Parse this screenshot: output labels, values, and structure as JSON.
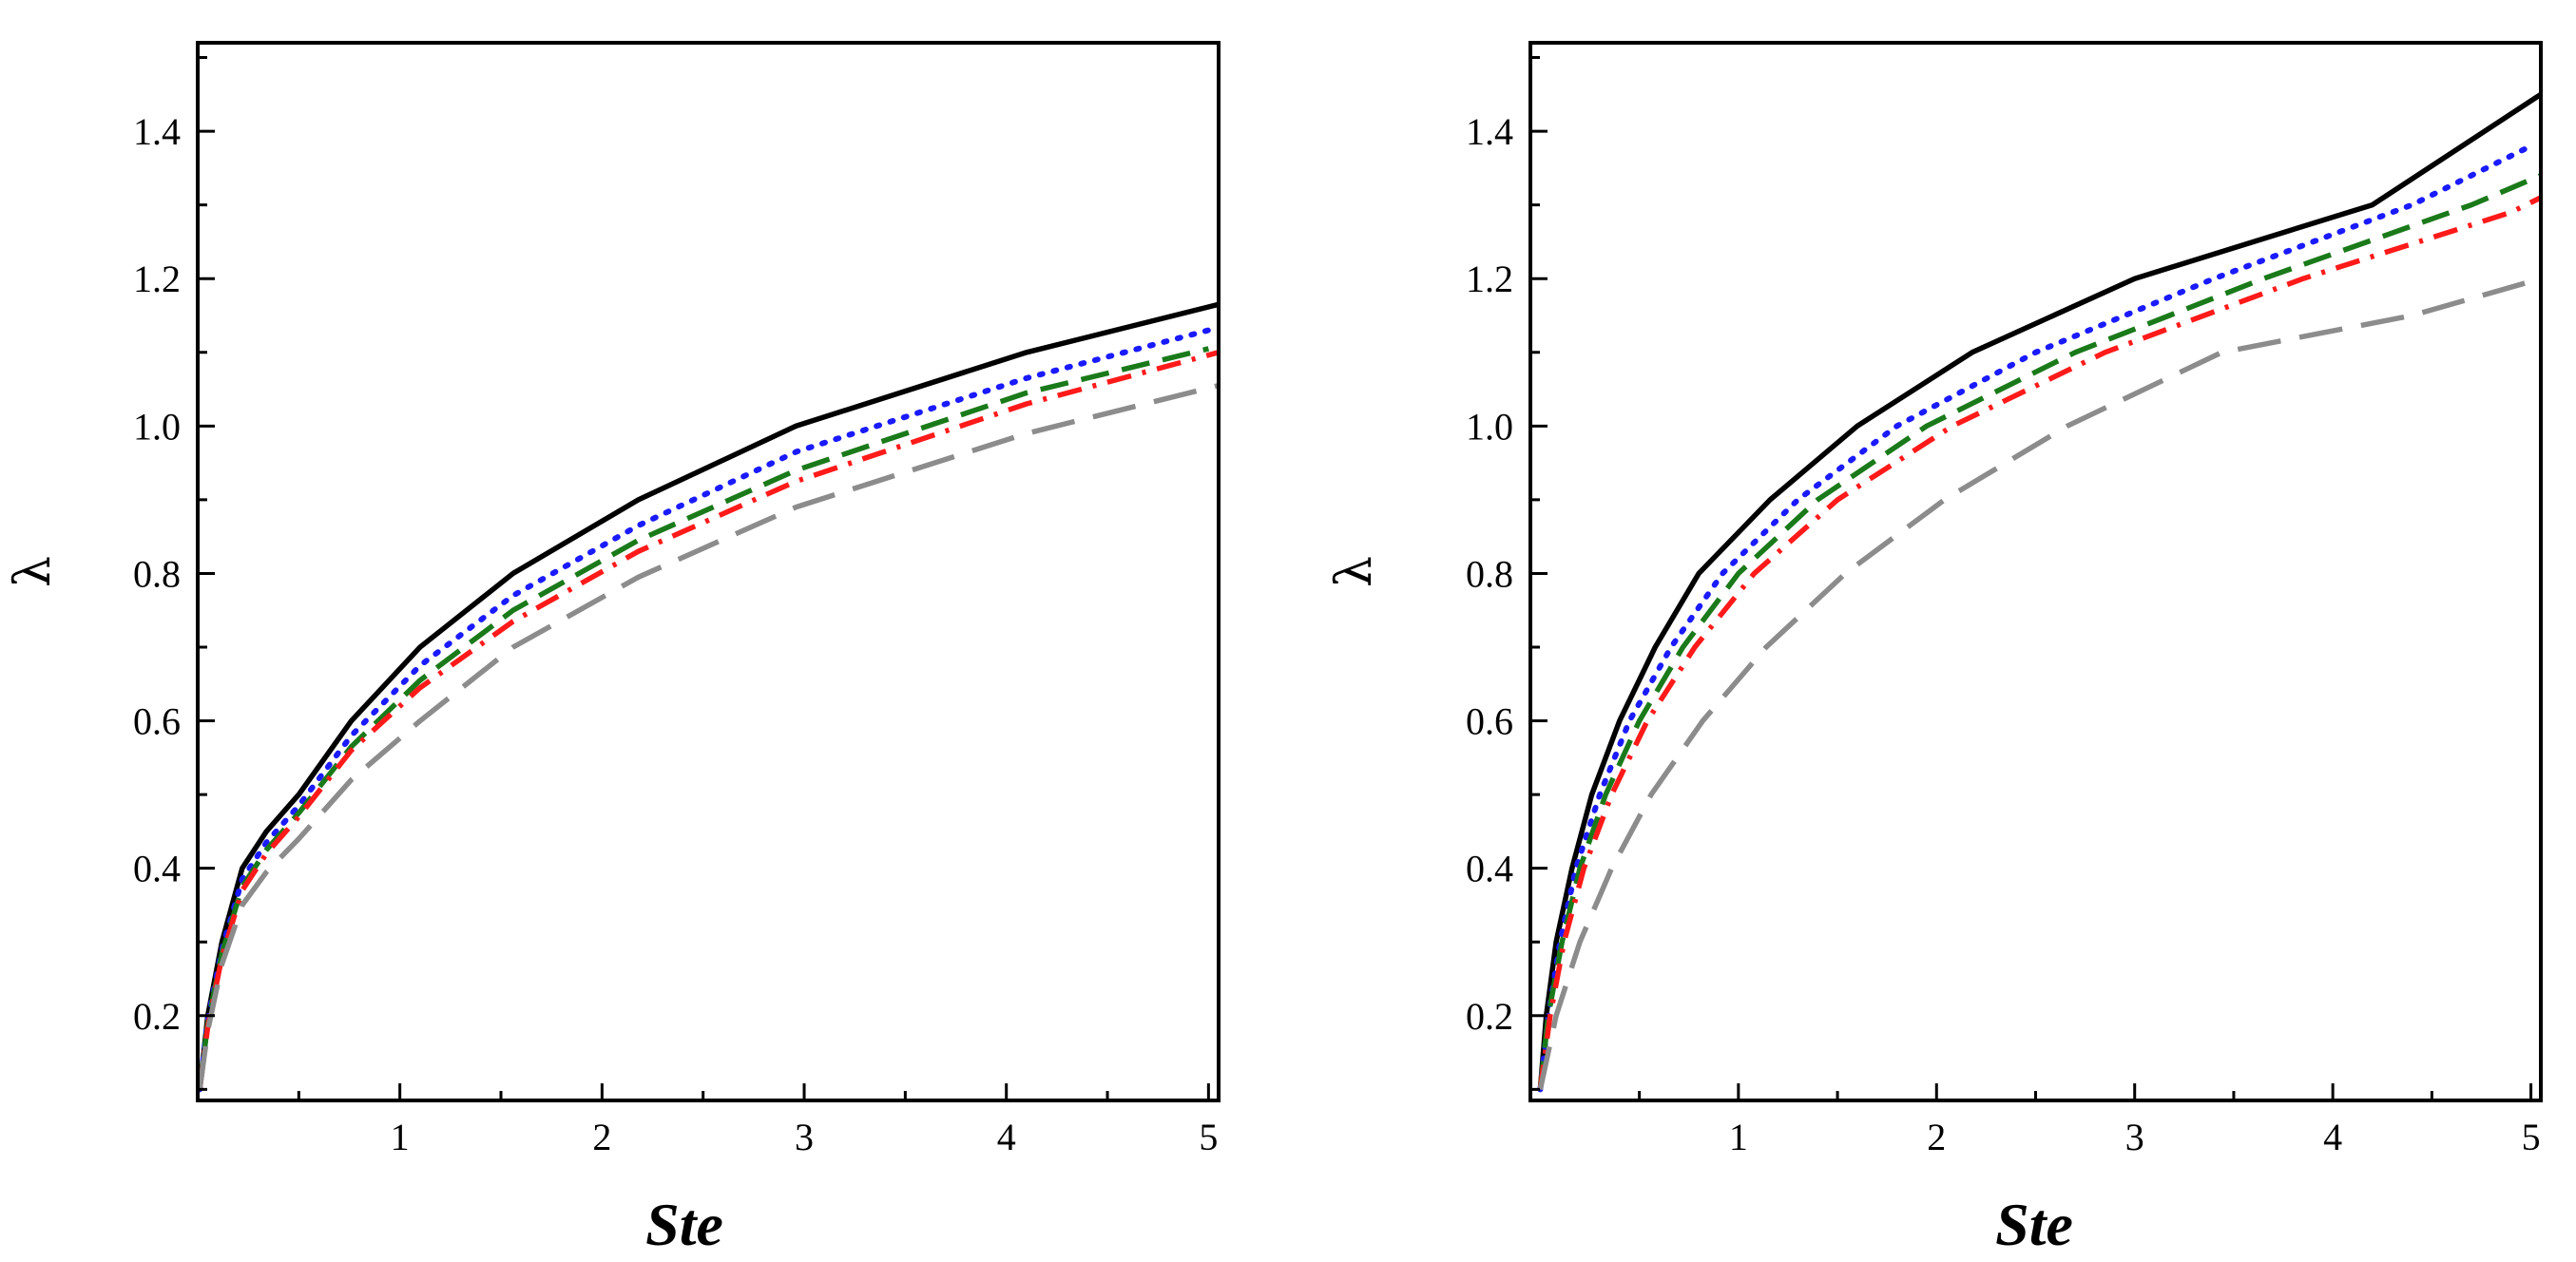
{
  "chart_data": [
    {
      "type": "line",
      "xlabel": "Ste",
      "ylabel": "λ",
      "xlim": [
        0,
        5.05
      ],
      "ylim": [
        0.085,
        1.52
      ],
      "xticks": [
        {
          "v": 1,
          "label": "1"
        },
        {
          "v": 2,
          "label": "2"
        },
        {
          "v": 3,
          "label": "3"
        },
        {
          "v": 4,
          "label": "4"
        },
        {
          "v": 5,
          "label": "5"
        }
      ],
      "yticks": [
        {
          "v": 0.2,
          "label": "0.2"
        },
        {
          "v": 0.4,
          "label": "0.4"
        },
        {
          "v": 0.6,
          "label": "0.6"
        },
        {
          "v": 0.8,
          "label": "0.8"
        },
        {
          "v": 1.0,
          "label": "1.0"
        },
        {
          "v": 1.2,
          "label": "1.2"
        },
        {
          "v": 1.4,
          "label": "1.4"
        }
      ],
      "series": [
        {
          "name": "black-solid",
          "color": "#000000",
          "dash": "solid",
          "x": [
            0.01,
            0.05,
            0.12,
            0.22,
            0.34,
            0.5,
            0.76,
            1.1,
            1.56,
            2.18,
            2.96,
            4.1,
            5.05
          ],
          "y": [
            0.1,
            0.2,
            0.3,
            0.4,
            0.45,
            0.5,
            0.6,
            0.7,
            0.8,
            0.9,
            1.0,
            1.1,
            1.165
          ]
        },
        {
          "name": "blue-dotted",
          "color": "#1a1aff",
          "dash": "dotted",
          "x": [
            0.01,
            0.05,
            0.12,
            0.22,
            0.34,
            0.5,
            0.76,
            1.1,
            1.56,
            2.18,
            2.96,
            4.1,
            5.0
          ],
          "y": [
            0.1,
            0.195,
            0.29,
            0.385,
            0.435,
            0.485,
            0.58,
            0.675,
            0.77,
            0.865,
            0.965,
            1.065,
            1.13
          ]
        },
        {
          "name": "green-dashed",
          "color": "#1a7a1a",
          "dash": "dashed",
          "x": [
            0.01,
            0.05,
            0.12,
            0.22,
            0.34,
            0.5,
            0.76,
            1.1,
            1.56,
            2.18,
            2.96,
            4.1,
            5.0
          ],
          "y": [
            0.1,
            0.19,
            0.285,
            0.375,
            0.425,
            0.475,
            0.565,
            0.655,
            0.75,
            0.845,
            0.94,
            1.045,
            1.105
          ]
        },
        {
          "name": "red-dashdot",
          "color": "#ff1a1a",
          "dash": "dashdot",
          "x": [
            0.01,
            0.05,
            0.12,
            0.22,
            0.34,
            0.5,
            0.76,
            1.1,
            1.56,
            2.18,
            2.96,
            4.1,
            5.05
          ],
          "y": [
            0.1,
            0.185,
            0.28,
            0.37,
            0.42,
            0.47,
            0.56,
            0.645,
            0.735,
            0.83,
            0.925,
            1.03,
            1.1
          ]
        },
        {
          "name": "gray-longdash",
          "color": "#8c8c8c",
          "dash": "longdash",
          "x": [
            0.01,
            0.05,
            0.12,
            0.22,
            0.34,
            0.5,
            0.76,
            1.1,
            1.56,
            2.18,
            2.96,
            4.1,
            5.05
          ],
          "y": [
            0.1,
            0.18,
            0.27,
            0.35,
            0.395,
            0.44,
            0.52,
            0.6,
            0.7,
            0.795,
            0.89,
            0.99,
            1.055
          ]
        }
      ]
    },
    {
      "type": "line",
      "xlabel": "Ste",
      "ylabel": "λ",
      "xlim": [
        -0.05,
        5.05
      ],
      "ylim": [
        0.085,
        1.52
      ],
      "xticks": [
        {
          "v": 1,
          "label": "1"
        },
        {
          "v": 2,
          "label": "2"
        },
        {
          "v": 3,
          "label": "3"
        },
        {
          "v": 4,
          "label": "4"
        },
        {
          "v": 5,
          "label": "5"
        }
      ],
      "yticks": [
        {
          "v": 0.2,
          "label": "0.2"
        },
        {
          "v": 0.4,
          "label": "0.4"
        },
        {
          "v": 0.6,
          "label": "0.6"
        },
        {
          "v": 0.8,
          "label": "0.8"
        },
        {
          "v": 1.0,
          "label": "1.0"
        },
        {
          "v": 1.2,
          "label": "1.2"
        },
        {
          "v": 1.4,
          "label": "1.4"
        }
      ],
      "series": [
        {
          "name": "black-solid",
          "color": "#000000",
          "dash": "solid",
          "x": [
            0.0,
            0.03,
            0.08,
            0.16,
            0.26,
            0.4,
            0.58,
            0.8,
            1.16,
            1.6,
            2.18,
            3.0,
            4.2,
            5.05
          ],
          "y": [
            0.1,
            0.2,
            0.3,
            0.4,
            0.5,
            0.6,
            0.7,
            0.8,
            0.9,
            1.0,
            1.1,
            1.2,
            1.3,
            1.45
          ]
        },
        {
          "name": "blue-dotted",
          "color": "#1a1aff",
          "dash": "dotted",
          "x": [
            0.0,
            0.04,
            0.1,
            0.18,
            0.3,
            0.45,
            0.66,
            0.92,
            1.3,
            1.8,
            2.5,
            3.4,
            4.4,
            5.0
          ],
          "y": [
            0.1,
            0.2,
            0.3,
            0.4,
            0.5,
            0.6,
            0.7,
            0.8,
            0.9,
            1.0,
            1.1,
            1.2,
            1.3,
            1.38
          ]
        },
        {
          "name": "green-dashed",
          "color": "#1a7a1a",
          "dash": "dashed",
          "x": [
            0.0,
            0.04,
            0.11,
            0.2,
            0.33,
            0.5,
            0.72,
            1.0,
            1.4,
            1.95,
            2.7,
            3.65,
            4.7,
            5.05
          ],
          "y": [
            0.1,
            0.2,
            0.3,
            0.4,
            0.5,
            0.6,
            0.7,
            0.8,
            0.9,
            1.0,
            1.1,
            1.2,
            1.3,
            1.34
          ]
        },
        {
          "name": "red-dashdot",
          "color": "#ff1a1a",
          "dash": "dashdot",
          "x": [
            0.0,
            0.05,
            0.12,
            0.22,
            0.36,
            0.54,
            0.78,
            1.08,
            1.5,
            2.08,
            2.85,
            3.85,
            4.9,
            5.05
          ],
          "y": [
            0.1,
            0.2,
            0.3,
            0.4,
            0.5,
            0.6,
            0.7,
            0.8,
            0.9,
            1.0,
            1.1,
            1.2,
            1.29,
            1.31
          ]
        },
        {
          "name": "gray-longdash",
          "color": "#8c8c8c",
          "dash": "longdash",
          "x": [
            0.0,
            0.08,
            0.2,
            0.36,
            0.56,
            0.82,
            1.14,
            1.54,
            2.04,
            2.66,
            3.44,
            4.4,
            5.05
          ],
          "y": [
            0.1,
            0.2,
            0.3,
            0.4,
            0.5,
            0.6,
            0.7,
            0.8,
            0.9,
            1.0,
            1.1,
            1.15,
            1.2
          ]
        }
      ]
    }
  ]
}
